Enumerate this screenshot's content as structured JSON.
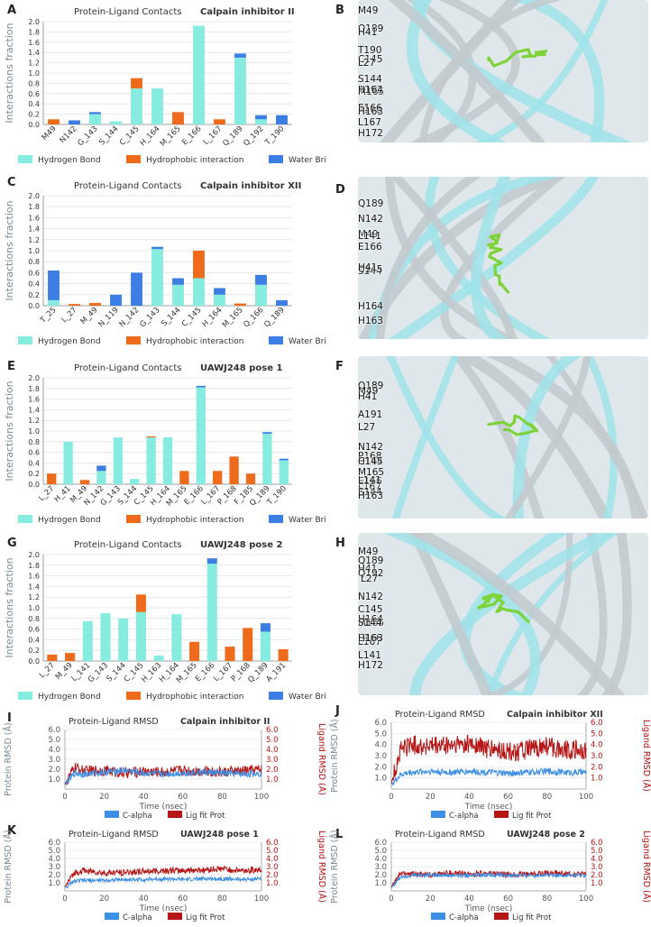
{
  "panels": {
    "A": "A",
    "B": "B",
    "C": "C",
    "D": "D",
    "E": "E",
    "F": "F",
    "G": "G",
    "H": "H",
    "I": "I",
    "J": "J",
    "K": "K",
    "L": "L"
  },
  "colors": {
    "hbond": "#86ecdf",
    "hydrophobic": "#ef6b1c",
    "water": "#3d7ee5",
    "calpha": "#3d8fe5",
    "ligfit": "#b51515"
  },
  "molecules": [
    {
      "id": "B",
      "labels": [
        "M49",
        "Q189",
        "H41",
        "T190",
        "C145",
        "L27",
        "S144",
        "A191",
        "M165",
        "H164",
        "P168",
        "E166",
        "H163",
        "L167",
        "H172"
      ]
    },
    {
      "id": "D",
      "labels": [
        "Q189",
        "N142",
        "M49",
        "L141",
        "E166",
        "S144",
        "C145",
        "H41",
        "H164",
        "H163"
      ]
    },
    {
      "id": "F",
      "labels": [
        "Q189",
        "M49",
        "H41",
        "A191",
        "L27",
        "N142",
        "P168",
        "M165",
        "H164",
        "C145",
        "L167",
        "E166",
        "L141",
        "S144",
        "H163"
      ]
    },
    {
      "id": "H",
      "labels": [
        "M49",
        "Q189",
        "H41",
        "Q192",
        "L27",
        "N142",
        "C145",
        "P168",
        "M165",
        "H164",
        "S144",
        "L167",
        "E166",
        "H163",
        "L141",
        "H172"
      ]
    }
  ],
  "chart_data": [
    {
      "id": "A",
      "type": "bar",
      "stacked": true,
      "title": "Protein-Ligand Contacts",
      "title_bold": "Calpain inhibitor II",
      "ylabel": "Interactions fraction",
      "ylim": [
        0,
        2.0
      ],
      "yticks": [
        "0.0",
        "0.2",
        "0.4",
        "0.6",
        "0.8",
        "1.0",
        "1.2",
        "1.4",
        "1.6",
        "1.8",
        "2.0"
      ],
      "categories": [
        "M49",
        "N142",
        "G_143",
        "S_144",
        "C_145",
        "H_164",
        "M_165",
        "E_166",
        "L_167",
        "Q_189",
        "Q_192",
        "T_190"
      ],
      "series": [
        {
          "name": "Hydrogen Bond",
          "values": [
            0,
            0,
            0.2,
            0.06,
            0.7,
            0.7,
            0,
            1.92,
            0,
            1.3,
            0.1,
            0
          ]
        },
        {
          "name": "Hydrophobic interaction",
          "values": [
            0.1,
            0,
            0,
            0,
            0.2,
            0,
            0.24,
            0,
            0.1,
            0,
            0,
            0
          ]
        },
        {
          "name": "Water Bridge",
          "values": [
            0,
            0.08,
            0.04,
            0,
            0,
            0,
            0,
            0,
            0,
            0.08,
            0.08,
            0.18
          ]
        }
      ],
      "grid": true,
      "legend": "bottom"
    },
    {
      "id": "C",
      "type": "bar",
      "stacked": true,
      "title": "Protein-Ligand Contacts",
      "title_bold": "Calpain inhibitor XII",
      "ylabel": "Interactions fraction",
      "ylim": [
        0,
        2.0
      ],
      "yticks": [
        "0.0",
        "0.2",
        "0.4",
        "0.6",
        "0.8",
        "1.0",
        "1.2",
        "1.4",
        "1.6",
        "1.8",
        "2.0"
      ],
      "categories": [
        "T_25",
        "L_27",
        "M_49",
        "N_119",
        "N_142",
        "G_143",
        "S_144",
        "C_145",
        "H_164",
        "M_165",
        "Q_166",
        "Q_189"
      ],
      "series": [
        {
          "name": "Hydrogen Bond",
          "values": [
            0.1,
            0,
            0,
            0,
            0,
            1.03,
            0.38,
            0.5,
            0.2,
            0,
            0.38,
            0
          ]
        },
        {
          "name": "Hydrophobic interaction",
          "values": [
            0,
            0.03,
            0.05,
            0,
            0,
            0,
            0,
            0.5,
            0,
            0.04,
            0,
            0
          ]
        },
        {
          "name": "Water Bridge",
          "values": [
            0.54,
            0,
            0,
            0.2,
            0.6,
            0.04,
            0.12,
            0,
            0.12,
            0,
            0.18,
            0.1
          ]
        }
      ],
      "grid": true,
      "legend": "bottom"
    },
    {
      "id": "E",
      "type": "bar",
      "stacked": true,
      "title": "Protein-Ligand Contacts",
      "title_bold": "UAWJ248 pose 1",
      "ylabel": "Interactions fraction",
      "ylim": [
        0,
        2.0
      ],
      "yticks": [
        "0.0",
        "0.2",
        "0.4",
        "0.6",
        "0.8",
        "1.0",
        "1.2",
        "1.4",
        "1.6",
        "1.8",
        "2.0"
      ],
      "categories": [
        "L_27",
        "H_41",
        "M_49",
        "N_142",
        "G_143",
        "S_144",
        "C_145",
        "H_164",
        "M_165",
        "E_166",
        "L_167",
        "P_168",
        "F_185",
        "Q_189",
        "T_190"
      ],
      "series": [
        {
          "name": "Hydrogen Bond",
          "values": [
            0,
            0.8,
            0,
            0.25,
            0.88,
            0.1,
            0.88,
            0.88,
            0,
            1.82,
            0,
            0,
            0,
            0.95,
            0.45
          ]
        },
        {
          "name": "Hydrophobic interaction",
          "values": [
            0.2,
            0,
            0.08,
            0,
            0,
            0,
            0.02,
            0,
            0.25,
            0,
            0.25,
            0.52,
            0.2,
            0,
            0
          ]
        },
        {
          "name": "Water Bridge",
          "values": [
            0,
            0,
            0,
            0.1,
            0,
            0,
            0,
            0,
            0,
            0.03,
            0,
            0,
            0,
            0.03,
            0.03
          ]
        }
      ],
      "grid": true,
      "legend": "bottom"
    },
    {
      "id": "G",
      "type": "bar",
      "stacked": true,
      "title": "Protein-Ligand Contacts",
      "title_bold": "UAWJ248 pose 2",
      "ylabel": "Interactions fraction",
      "ylim": [
        0,
        2.0
      ],
      "yticks": [
        "0.0",
        "0.2",
        "0.4",
        "0.6",
        "0.8",
        "1.0",
        "1.2",
        "1.4",
        "1.6",
        "1.8",
        "2.0"
      ],
      "categories": [
        "L_27",
        "M_49",
        "L_141",
        "G_143",
        "S_144",
        "C_145",
        "H_163",
        "H_164",
        "M_165",
        "E_166",
        "L_167",
        "P_168",
        "Q_189",
        "A_191"
      ],
      "series": [
        {
          "name": "Hydrogen Bond",
          "values": [
            0,
            0,
            0.75,
            0.9,
            0.8,
            0.92,
            0.1,
            0.88,
            0,
            1.83,
            0,
            0,
            0.55,
            0
          ]
        },
        {
          "name": "Hydrophobic interaction",
          "values": [
            0.12,
            0.15,
            0,
            0,
            0,
            0.33,
            0,
            0,
            0.36,
            0,
            0.27,
            0.62,
            0,
            0.22
          ]
        },
        {
          "name": "Water Bridge",
          "values": [
            0,
            0,
            0,
            0,
            0,
            0,
            0,
            0,
            0,
            0.1,
            0,
            0,
            0.16,
            0
          ]
        }
      ],
      "grid": true,
      "legend": "bottom"
    },
    {
      "id": "I",
      "type": "line",
      "title": "Protein-Ligand RMSD",
      "title_bold": "Calpain inhibitor II",
      "xlabel": "Time (nsec)",
      "ylabel": "Protein RMSD (Å)",
      "y2label": "Ligand RMSD (Å)",
      "xlim": [
        0,
        100
      ],
      "ylim": [
        0,
        6.0
      ],
      "y2lim": [
        0,
        6.0
      ],
      "xticks": [
        "0",
        "20",
        "40",
        "60",
        "80",
        "100"
      ],
      "yticks": [
        "1.0",
        "2.0",
        "3.0",
        "4.0",
        "5.0",
        "6.0"
      ],
      "series": [
        {
          "name": "C-alpha",
          "mean": 1.6,
          "spread": 0.35,
          "x": [
            0,
            5,
            10,
            20,
            30,
            40,
            50,
            60,
            70,
            80,
            90,
            100
          ],
          "y": [
            0.4,
            1.6,
            1.5,
            1.7,
            1.9,
            1.6,
            1.5,
            1.6,
            1.7,
            1.6,
            1.5,
            1.6
          ]
        },
        {
          "name": "Lig fit Prot",
          "mean": 1.8,
          "spread": 0.55,
          "x": [
            0,
            5,
            10,
            20,
            30,
            40,
            50,
            60,
            70,
            80,
            90,
            100
          ],
          "y": [
            0.5,
            2.2,
            1.8,
            1.9,
            1.6,
            1.8,
            1.7,
            1.9,
            1.8,
            1.7,
            1.8,
            2.0
          ]
        }
      ],
      "legend": "bottom"
    },
    {
      "id": "J",
      "type": "line",
      "title": "Protein-Ligand RMSD",
      "title_bold": "Calpain inhibitor XII",
      "xlabel": "Time (nsec)",
      "ylabel": "Protein RMSD (Å)",
      "y2label": "Ligand RMSD (Å)",
      "xlim": [
        0,
        100
      ],
      "ylim": [
        0,
        6.0
      ],
      "y2lim": [
        0,
        6.0
      ],
      "xticks": [
        "0",
        "20",
        "40",
        "60",
        "80",
        "100"
      ],
      "yticks": [
        "1.0",
        "2.0",
        "3.0",
        "4.0",
        "5.0",
        "6.0"
      ],
      "series": [
        {
          "name": "C-alpha",
          "mean": 1.5,
          "spread": 0.3,
          "x": [
            0,
            5,
            10,
            20,
            30,
            40,
            50,
            60,
            70,
            80,
            90,
            100
          ],
          "y": [
            0.4,
            1.3,
            1.5,
            1.6,
            1.5,
            1.6,
            1.5,
            1.4,
            1.5,
            1.6,
            1.5,
            1.5
          ]
        },
        {
          "name": "Lig fit Prot",
          "mean": 3.7,
          "spread": 0.9,
          "x": [
            0,
            5,
            10,
            20,
            30,
            40,
            50,
            60,
            70,
            80,
            90,
            100
          ],
          "y": [
            0.5,
            3.6,
            4.0,
            3.8,
            3.9,
            4.1,
            3.6,
            3.3,
            3.5,
            3.8,
            3.6,
            3.4
          ]
        }
      ],
      "legend": "bottom"
    },
    {
      "id": "K",
      "type": "line",
      "title": "Protein-Ligand RMSD",
      "title_bold": "UAWJ248 pose 1",
      "xlabel": "Time (nsec)",
      "ylabel": "Protein RMSD (Å)",
      "y2label": "Ligand RMSD (Å)",
      "xlim": [
        0,
        100
      ],
      "ylim": [
        0,
        6.0
      ],
      "y2lim": [
        0,
        6.0
      ],
      "xticks": [
        "0",
        "20",
        "40",
        "60",
        "80",
        "100"
      ],
      "yticks": [
        "1.0",
        "2.0",
        "3.0",
        "4.0",
        "5.0",
        "6.0"
      ],
      "series": [
        {
          "name": "C-alpha",
          "mean": 1.4,
          "spread": 0.25,
          "x": [
            0,
            5,
            10,
            20,
            30,
            40,
            50,
            60,
            70,
            80,
            90,
            100
          ],
          "y": [
            0.4,
            1.2,
            1.3,
            1.3,
            1.4,
            1.4,
            1.5,
            1.4,
            1.5,
            1.5,
            1.4,
            1.5
          ]
        },
        {
          "name": "Lig fit Prot",
          "mean": 2.4,
          "spread": 0.4,
          "x": [
            0,
            5,
            10,
            20,
            30,
            40,
            50,
            60,
            70,
            80,
            90,
            100
          ],
          "y": [
            0.5,
            2.3,
            2.5,
            2.2,
            2.3,
            2.4,
            2.5,
            2.5,
            2.6,
            2.7,
            2.5,
            2.6
          ]
        }
      ],
      "legend": "bottom"
    },
    {
      "id": "L",
      "type": "line",
      "title": "Protein-Ligand RMSD",
      "title_bold": "UAWJ248 pose 2",
      "xlabel": "Time (nsec)",
      "ylabel": "Protein RMSD (Å)",
      "y2label": "Ligand RMSD (Å)",
      "xlim": [
        0,
        100
      ],
      "ylim": [
        0,
        6.0
      ],
      "y2lim": [
        0,
        6.0
      ],
      "xticks": [
        "0",
        "20",
        "40",
        "60",
        "80",
        "100"
      ],
      "yticks": [
        "1.0",
        "2.0",
        "3.0",
        "4.0",
        "5.0",
        "6.0"
      ],
      "series": [
        {
          "name": "C-alpha",
          "mean": 1.9,
          "spread": 0.25,
          "x": [
            0,
            5,
            10,
            20,
            30,
            40,
            50,
            60,
            70,
            80,
            90,
            100
          ],
          "y": [
            0.4,
            1.8,
            1.9,
            2.0,
            1.9,
            1.9,
            2.0,
            1.9,
            1.9,
            2.0,
            1.9,
            1.9
          ]
        },
        {
          "name": "Lig fit Prot",
          "mean": 2.1,
          "spread": 0.35,
          "x": [
            0,
            5,
            10,
            20,
            30,
            40,
            50,
            60,
            70,
            80,
            90,
            100
          ],
          "y": [
            0.5,
            2.2,
            2.1,
            2.0,
            2.2,
            2.1,
            2.2,
            2.0,
            2.1,
            2.2,
            2.1,
            2.1
          ]
        }
      ],
      "legend": "bottom"
    }
  ]
}
